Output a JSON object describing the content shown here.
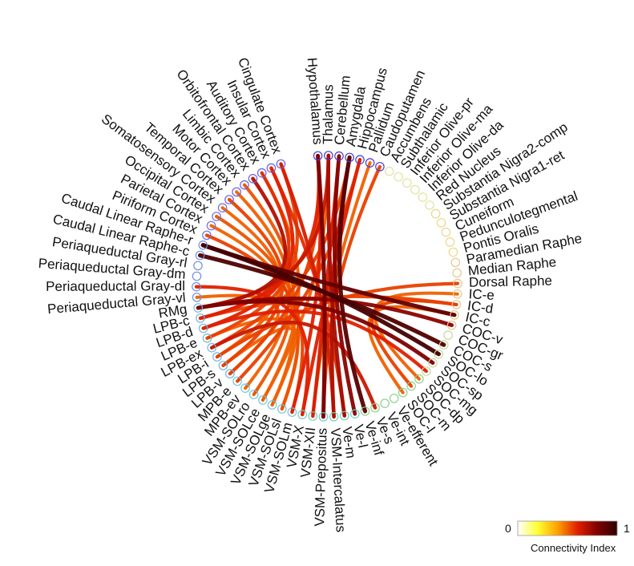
{
  "diagram": {
    "nodes": [
      {
        "label": "Hypothalamus",
        "color": "#4a3ed0"
      },
      {
        "label": "Thalamus",
        "color": "#4a3ed0"
      },
      {
        "label": "Cerebellum",
        "color": "#4a3ed0"
      },
      {
        "label": "Amygdala",
        "color": "#4a3ed0"
      },
      {
        "label": "Hippocampus",
        "color": "#4a3ed0"
      },
      {
        "label": "Pallidum",
        "color": "#4a3ed0"
      },
      {
        "label": "Caudoputamen",
        "color": "#4a3ed0"
      },
      {
        "label": "Accumbens",
        "color": "#e3e3a0"
      },
      {
        "label": "Subthalamic",
        "color": "#e3e3a0"
      },
      {
        "label": "Inferior Olive-pr",
        "color": "#e3e3a0"
      },
      {
        "label": "Inferior Olive-ma",
        "color": "#e3e3a0"
      },
      {
        "label": "Inferior Olive-da",
        "color": "#e3e3a0"
      },
      {
        "label": "Red Nucleus",
        "color": "#e3e3a0"
      },
      {
        "label": "Substantia Nigra2-comp",
        "color": "#e8d88a"
      },
      {
        "label": "Substantia Nigra1-ret",
        "color": "#e8d88a"
      },
      {
        "label": "Cuneiform",
        "color": "#e8d88a"
      },
      {
        "label": "Pedunculotegmental",
        "color": "#e8d88a"
      },
      {
        "label": "Pontis Oralis",
        "color": "#e8d88a"
      },
      {
        "label": "Paramedian Raphe",
        "color": "#e8c890"
      },
      {
        "label": "Median Raphe",
        "color": "#e8c890"
      },
      {
        "label": "Dorsal Raphe",
        "color": "#e8c890"
      },
      {
        "label": "IC-e",
        "color": "#e8c890"
      },
      {
        "label": "IC-d",
        "color": "#e8c890"
      },
      {
        "label": "IC-c",
        "color": "#e8c890"
      },
      {
        "label": "COC-v",
        "color": "#e8c890"
      },
      {
        "label": "COC-gr",
        "color": "#c8d8a0"
      },
      {
        "label": "COC-s",
        "color": "#c8d8a0"
      },
      {
        "label": "SOC-lo",
        "color": "#c8d8a0"
      },
      {
        "label": "SOC-sp",
        "color": "#c8d8a0"
      },
      {
        "label": "SOC-mg",
        "color": "#c8d8a0"
      },
      {
        "label": "SOC-dp",
        "color": "#8fd08f"
      },
      {
        "label": "SOC-m",
        "color": "#8fd08f"
      },
      {
        "label": "SOC-l",
        "color": "#8fd08f"
      },
      {
        "label": "Ve-efferent",
        "color": "#8fd08f"
      },
      {
        "label": "Ve-int",
        "color": "#8fd08f"
      },
      {
        "label": "Ve-s",
        "color": "#8fd08f"
      },
      {
        "label": "Ve-inf",
        "color": "#8fd08f"
      },
      {
        "label": "Ve-l",
        "color": "#6fd0c0"
      },
      {
        "label": "Ve-m",
        "color": "#6fd0c0"
      },
      {
        "label": "VSM-Intercalatus",
        "color": "#6fd0c0"
      },
      {
        "label": "VSM-Prepositus",
        "color": "#6fd0c0"
      },
      {
        "label": "VSM-XII",
        "color": "#6fd0c0"
      },
      {
        "label": "VSM-X",
        "color": "#6fd0c0"
      },
      {
        "label": "VSM-SOLm",
        "color": "#6fc8d8"
      },
      {
        "label": "VSM-SOLsl",
        "color": "#6fc8d8"
      },
      {
        "label": "VSM-SOLge",
        "color": "#6fc8d8"
      },
      {
        "label": "VSM-SOLce",
        "color": "#6fc8d8"
      },
      {
        "label": "VSM-SOLro",
        "color": "#6fc8d8"
      },
      {
        "label": "MPB-ev",
        "color": "#6fc8d8"
      },
      {
        "label": "MPB-e",
        "color": "#6fc8d8"
      },
      {
        "label": "LPB-v",
        "color": "#70b8e0"
      },
      {
        "label": "LPB-s",
        "color": "#70b8e0"
      },
      {
        "label": "LPB-i",
        "color": "#70b8e0"
      },
      {
        "label": "LPB-ex",
        "color": "#70b8e0"
      },
      {
        "label": "LPB-e",
        "color": "#70b8e0"
      },
      {
        "label": "LPB-d",
        "color": "#70b8e0"
      },
      {
        "label": "LPB-c",
        "color": "#70b8e0"
      },
      {
        "label": "RMg",
        "color": "#70b8e0"
      },
      {
        "label": "Periaqueductal Gray-vl",
        "color": "#7090e0"
      },
      {
        "label": "Periaqueductal Gray-dl",
        "color": "#7090e0"
      },
      {
        "label": "Periaqueductal Gray-dm",
        "color": "#7090e0"
      },
      {
        "label": "Periaqueductal Gray-rl",
        "color": "#7090e0"
      },
      {
        "label": "Caudal Linear Raphe-c",
        "color": "#7090e0"
      },
      {
        "label": "Caudal Linear Raphe-r",
        "color": "#7090e0"
      },
      {
        "label": "Piriform Cortex",
        "color": "#7070e0"
      },
      {
        "label": "Parietal Cortex",
        "color": "#7070e0"
      },
      {
        "label": "Occipital Cortex",
        "color": "#7070e0"
      },
      {
        "label": "Somatosensory Cortex",
        "color": "#7070e0"
      },
      {
        "label": "Temporal Cortex",
        "color": "#6a60e0"
      },
      {
        "label": "Motor Cortex",
        "color": "#6a60e0"
      },
      {
        "label": "Limbic Cortex",
        "color": "#6a60e0"
      },
      {
        "label": "Orbitofrontal Cortex",
        "color": "#6a60e0"
      },
      {
        "label": "Auditory Cortex",
        "color": "#6a60e0"
      },
      {
        "label": "Insular Cortex",
        "color": "#6a60e0"
      },
      {
        "label": "Cingulate Cortex",
        "color": "#6a60e0"
      }
    ],
    "links": [
      {
        "source": "Hypothalamus",
        "target": "VSM-Prepositus",
        "value": 0.82
      },
      {
        "source": "Hypothalamus",
        "target": "LPB-v",
        "value": 0.55
      },
      {
        "source": "Hypothalamus",
        "target": "VSM-SOLm",
        "value": 0.6
      },
      {
        "source": "Thalamus",
        "target": "Ve-m",
        "value": 0.72
      },
      {
        "source": "Thalamus",
        "target": "VSM-SOLce",
        "value": 0.5
      },
      {
        "source": "Cerebellum",
        "target": "Ve-l",
        "value": 0.78
      },
      {
        "source": "Cerebellum",
        "target": "VSM-XII",
        "value": 0.62
      },
      {
        "source": "Amygdala",
        "target": "Ve-inf",
        "value": 0.9
      },
      {
        "source": "Amygdala",
        "target": "VSM-Intercalatus",
        "value": 0.7
      },
      {
        "source": "Hippocampus",
        "target": "MPB-e",
        "value": 0.55
      },
      {
        "source": "Hippocampus",
        "target": "VSM-X",
        "value": 0.6
      },
      {
        "source": "Caudal Linear Raphe-r",
        "target": "SOC-lo",
        "value": 0.95
      },
      {
        "source": "Caudal Linear Raphe-c",
        "target": "COC-s",
        "value": 0.92
      },
      {
        "source": "Caudal Linear Raphe-r",
        "target": "IC-c",
        "value": 0.88
      },
      {
        "source": "RMg",
        "target": "COC-v",
        "value": 0.78
      },
      {
        "source": "RMg",
        "target": "SOC-sp",
        "value": 0.8
      },
      {
        "source": "LPB-c",
        "target": "IC-d",
        "value": 0.55
      },
      {
        "source": "LPB-d",
        "target": "SOC-mg",
        "value": 0.6
      },
      {
        "source": "LPB-e",
        "target": "VSM-SOLsl",
        "value": 0.5
      },
      {
        "source": "LPB-ex",
        "target": "Ve-s",
        "value": 0.65
      },
      {
        "source": "LPB-s",
        "target": "VSM-SOLge",
        "value": 0.5
      },
      {
        "source": "LPB-i",
        "target": "Dorsal Raphe",
        "value": 0.55
      },
      {
        "source": "IC-e",
        "target": "SOC-dp",
        "value": 0.5
      },
      {
        "source": "IC-d",
        "target": "SOC-m",
        "value": 0.55
      },
      {
        "source": "IC-c",
        "target": "SOC-l",
        "value": 0.5
      },
      {
        "source": "Cingulate Cortex",
        "target": "LPB-e",
        "value": 0.55
      },
      {
        "source": "Insular Cortex",
        "target": "LPB-d",
        "value": 0.6
      },
      {
        "source": "Auditory Cortex",
        "target": "LPB-c",
        "value": 0.58
      },
      {
        "source": "Orbitofrontal Cortex",
        "target": "RMg",
        "value": 0.7
      },
      {
        "source": "Limbic Cortex",
        "target": "VSM-SOLro",
        "value": 0.52
      },
      {
        "source": "Motor Cortex",
        "target": "MPB-ev",
        "value": 0.5
      },
      {
        "source": "Temporal Cortex",
        "target": "LPB-s",
        "value": 0.55
      },
      {
        "source": "Somatosensory Cortex",
        "target": "LPB-i",
        "value": 0.5
      },
      {
        "source": "Occipital Cortex",
        "target": "VSM-SOLsl",
        "value": 0.52
      },
      {
        "source": "Parietal Cortex",
        "target": "VSM-SOLge",
        "value": 0.5
      },
      {
        "source": "Piriform Cortex",
        "target": "VSM-SOLm",
        "value": 0.55
      },
      {
        "source": "Periaqueductal Gray-vl",
        "target": "LPB-v",
        "value": 0.5
      },
      {
        "source": "Periaqueductal Gray-dl",
        "target": "VSM-X",
        "value": 0.6
      },
      {
        "source": "Pallidum",
        "target": "VSM-XII",
        "value": 0.5
      },
      {
        "source": "Caudoputamen",
        "target": "VSM-Prepositus",
        "value": 0.55
      },
      {
        "source": "Cingulate Cortex",
        "target": "VSM-Intercalatus",
        "value": 0.62
      },
      {
        "source": "Insular Cortex",
        "target": "Ve-m",
        "value": 0.58
      },
      {
        "source": "Auditory Cortex",
        "target": "VSM-SOLce",
        "value": 0.5
      },
      {
        "source": "Thalamus",
        "target": "RMg",
        "value": 0.65
      },
      {
        "source": "Hypothalamus",
        "target": "LPB-c",
        "value": 0.6
      },
      {
        "source": "Amygdala",
        "target": "LPB-ex",
        "value": 0.55
      }
    ],
    "legend": {
      "min_label": "0",
      "max_label": "1",
      "title": "Connectivity Index",
      "colors": [
        "#ffffff",
        "#ffff30",
        "#ffa000",
        "#e02000",
        "#800000",
        "#300000"
      ]
    }
  }
}
